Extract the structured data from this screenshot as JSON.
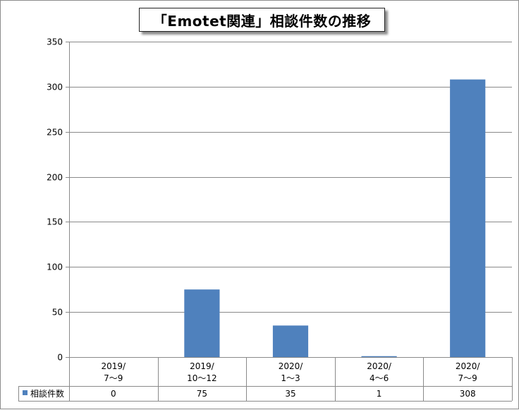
{
  "chart_data": {
    "type": "bar",
    "title": "「Emotet関連」相談件数の推移",
    "categories": [
      [
        "2019/",
        "7～9"
      ],
      [
        "2019/",
        "10～12"
      ],
      [
        "2020/",
        "1～3"
      ],
      [
        "2020/",
        "4～6"
      ],
      [
        "2020/",
        "7～9"
      ]
    ],
    "series": [
      {
        "name": "相談件数",
        "values": [
          0,
          75,
          35,
          1,
          308
        ],
        "color": "#4f81bd"
      }
    ],
    "ylim": [
      0,
      350
    ],
    "yticks": [
      0,
      50,
      100,
      150,
      200,
      250,
      300,
      350
    ],
    "grid": true,
    "legend": "data-table-left",
    "data_table": true
  }
}
